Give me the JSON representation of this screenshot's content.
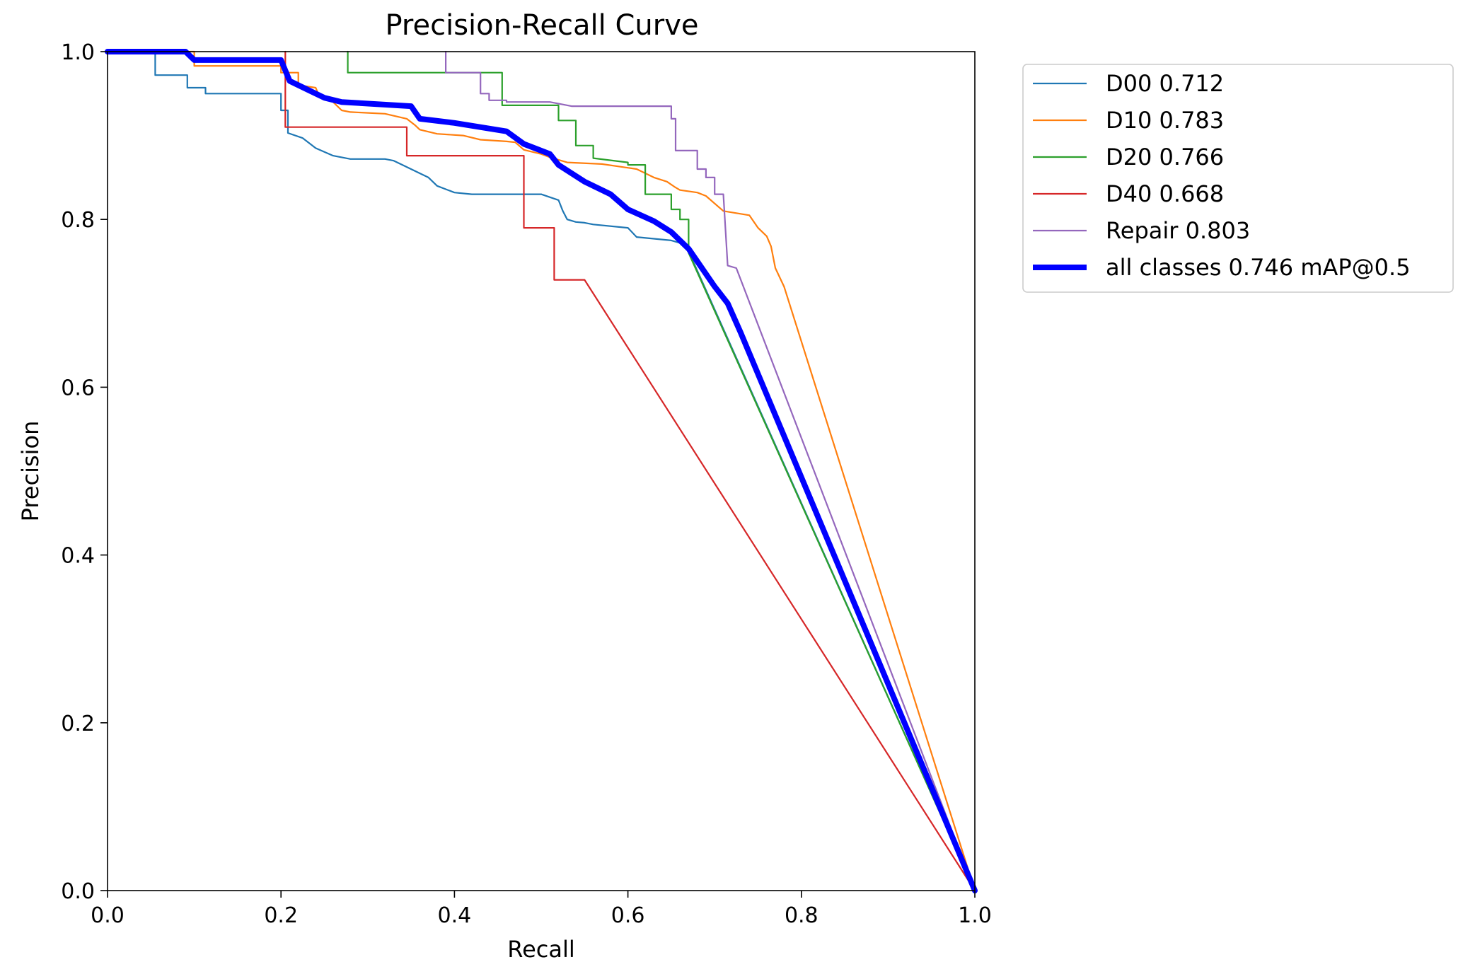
{
  "chart_data": {
    "type": "line",
    "title": "Precision-Recall Curve",
    "xlabel": "Recall",
    "ylabel": "Precision",
    "xlim": [
      0,
      1
    ],
    "ylim": [
      0,
      1
    ],
    "xticks": [
      "0.0",
      "0.2",
      "0.4",
      "0.6",
      "0.8",
      "1.0"
    ],
    "yticks": [
      "0.0",
      "0.2",
      "0.4",
      "0.6",
      "0.8",
      "1.0"
    ],
    "grid": false,
    "legend_position": "outside upper-right",
    "series": [
      {
        "name": "D00 0.712",
        "color": "#1f77b4",
        "points": [
          [
            0,
            1
          ],
          [
            0.055,
            1
          ],
          [
            0.055,
            0.972
          ],
          [
            0.092,
            0.972
          ],
          [
            0.092,
            0.957
          ],
          [
            0.113,
            0.957
          ],
          [
            0.113,
            0.95
          ],
          [
            0.2,
            0.95
          ],
          [
            0.2,
            0.93
          ],
          [
            0.208,
            0.93
          ],
          [
            0.208,
            0.903
          ],
          [
            0.225,
            0.897
          ],
          [
            0.24,
            0.885
          ],
          [
            0.26,
            0.876
          ],
          [
            0.28,
            0.872
          ],
          [
            0.32,
            0.872
          ],
          [
            0.33,
            0.87
          ],
          [
            0.34,
            0.865
          ],
          [
            0.36,
            0.855
          ],
          [
            0.37,
            0.85
          ],
          [
            0.38,
            0.84
          ],
          [
            0.4,
            0.832
          ],
          [
            0.42,
            0.83
          ],
          [
            0.5,
            0.83
          ],
          [
            0.52,
            0.823
          ],
          [
            0.525,
            0.81
          ],
          [
            0.53,
            0.8
          ],
          [
            0.54,
            0.797
          ],
          [
            0.55,
            0.796
          ],
          [
            0.56,
            0.794
          ],
          [
            0.6,
            0.79
          ],
          [
            0.61,
            0.779
          ],
          [
            0.65,
            0.775
          ],
          [
            0.66,
            0.772
          ],
          [
            0.67,
            0.762
          ],
          [
            1.0,
            0.0
          ]
        ]
      },
      {
        "name": "D10 0.783",
        "color": "#ff7f0e",
        "points": [
          [
            0,
            1
          ],
          [
            0.1,
            1
          ],
          [
            0.1,
            0.983
          ],
          [
            0.2,
            0.983
          ],
          [
            0.2,
            0.975
          ],
          [
            0.22,
            0.975
          ],
          [
            0.22,
            0.96
          ],
          [
            0.24,
            0.957
          ],
          [
            0.245,
            0.945
          ],
          [
            0.26,
            0.94
          ],
          [
            0.27,
            0.93
          ],
          [
            0.28,
            0.928
          ],
          [
            0.32,
            0.926
          ],
          [
            0.345,
            0.92
          ],
          [
            0.355,
            0.912
          ],
          [
            0.36,
            0.907
          ],
          [
            0.38,
            0.902
          ],
          [
            0.41,
            0.9
          ],
          [
            0.43,
            0.895
          ],
          [
            0.46,
            0.893
          ],
          [
            0.47,
            0.892
          ],
          [
            0.48,
            0.883
          ],
          [
            0.5,
            0.878
          ],
          [
            0.51,
            0.874
          ],
          [
            0.53,
            0.868
          ],
          [
            0.57,
            0.866
          ],
          [
            0.61,
            0.86
          ],
          [
            0.63,
            0.85
          ],
          [
            0.645,
            0.845
          ],
          [
            0.655,
            0.838
          ],
          [
            0.66,
            0.835
          ],
          [
            0.68,
            0.832
          ],
          [
            0.69,
            0.828
          ],
          [
            0.71,
            0.81
          ],
          [
            0.74,
            0.805
          ],
          [
            0.75,
            0.79
          ],
          [
            0.76,
            0.78
          ],
          [
            0.765,
            0.768
          ],
          [
            0.77,
            0.742
          ],
          [
            0.78,
            0.72
          ],
          [
            1.0,
            0.0
          ]
        ]
      },
      {
        "name": "D20 0.766",
        "color": "#2ca02c",
        "points": [
          [
            0.277,
            1
          ],
          [
            0.277,
            0.975
          ],
          [
            0.455,
            0.975
          ],
          [
            0.455,
            0.936
          ],
          [
            0.52,
            0.936
          ],
          [
            0.52,
            0.918
          ],
          [
            0.54,
            0.918
          ],
          [
            0.54,
            0.888
          ],
          [
            0.56,
            0.888
          ],
          [
            0.56,
            0.873
          ],
          [
            0.6,
            0.868
          ],
          [
            0.6,
            0.865
          ],
          [
            0.62,
            0.865
          ],
          [
            0.62,
            0.83
          ],
          [
            0.65,
            0.83
          ],
          [
            0.65,
            0.812
          ],
          [
            0.66,
            0.812
          ],
          [
            0.66,
            0.8
          ],
          [
            0.67,
            0.8
          ],
          [
            0.67,
            0.76
          ],
          [
            1.0,
            0.0
          ]
        ]
      },
      {
        "name": "D40 0.668",
        "color": "#d62728",
        "points": [
          [
            0.205,
            1
          ],
          [
            0.205,
            0.91
          ],
          [
            0.345,
            0.91
          ],
          [
            0.345,
            0.876
          ],
          [
            0.48,
            0.876
          ],
          [
            0.48,
            0.79
          ],
          [
            0.515,
            0.79
          ],
          [
            0.515,
            0.728
          ],
          [
            0.55,
            0.728
          ],
          [
            1.0,
            0.0
          ]
        ]
      },
      {
        "name": "Repair 0.803",
        "color": "#9467bd",
        "points": [
          [
            0.39,
            1
          ],
          [
            0.39,
            0.975
          ],
          [
            0.43,
            0.975
          ],
          [
            0.43,
            0.95
          ],
          [
            0.44,
            0.95
          ],
          [
            0.44,
            0.942
          ],
          [
            0.46,
            0.942
          ],
          [
            0.46,
            0.94
          ],
          [
            0.51,
            0.94
          ],
          [
            0.535,
            0.935
          ],
          [
            0.65,
            0.935
          ],
          [
            0.65,
            0.92
          ],
          [
            0.655,
            0.92
          ],
          [
            0.655,
            0.882
          ],
          [
            0.68,
            0.882
          ],
          [
            0.68,
            0.86
          ],
          [
            0.69,
            0.86
          ],
          [
            0.69,
            0.85
          ],
          [
            0.7,
            0.85
          ],
          [
            0.7,
            0.83
          ],
          [
            0.71,
            0.83
          ],
          [
            0.715,
            0.745
          ],
          [
            0.725,
            0.742
          ],
          [
            1.0,
            0.0
          ]
        ]
      },
      {
        "name": "all classes 0.746 mAP@0.5",
        "color": "#0000ff",
        "points": [
          [
            0,
            1
          ],
          [
            0.09,
            1
          ],
          [
            0.1,
            0.99
          ],
          [
            0.2,
            0.99
          ],
          [
            0.21,
            0.965
          ],
          [
            0.23,
            0.955
          ],
          [
            0.25,
            0.945
          ],
          [
            0.27,
            0.94
          ],
          [
            0.35,
            0.935
          ],
          [
            0.36,
            0.92
          ],
          [
            0.4,
            0.915
          ],
          [
            0.46,
            0.905
          ],
          [
            0.48,
            0.89
          ],
          [
            0.51,
            0.878
          ],
          [
            0.52,
            0.865
          ],
          [
            0.55,
            0.845
          ],
          [
            0.58,
            0.83
          ],
          [
            0.6,
            0.812
          ],
          [
            0.63,
            0.798
          ],
          [
            0.65,
            0.785
          ],
          [
            0.67,
            0.765
          ],
          [
            0.7,
            0.72
          ],
          [
            0.715,
            0.7
          ],
          [
            0.73,
            0.665
          ],
          [
            1.0,
            0.0
          ]
        ]
      }
    ]
  }
}
